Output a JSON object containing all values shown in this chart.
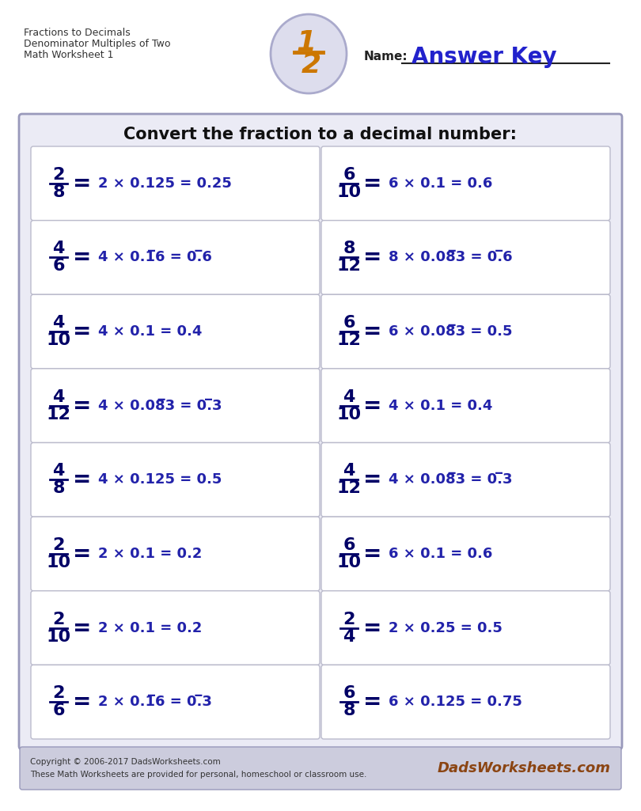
{
  "title_line1": "Fractions to Decimals",
  "title_line2": "Denominator Multiples of Two",
  "title_line3": "Math Worksheet 1",
  "answer_key_label": "Name:",
  "answer_key_text": "Answer Key",
  "main_instruction": "Convert the fraction to a decimal number:",
  "problems": [
    {
      "num": "2",
      "den": "8",
      "eq": "2 × 0.125 = 0.25"
    },
    {
      "num": "6",
      "den": "10",
      "eq": "6 × 0.1 = 0.6"
    },
    {
      "num": "4",
      "den": "6",
      "eq": "4 × 0.1̅6 = 0.̅6"
    },
    {
      "num": "8",
      "den": "12",
      "eq": "8 × 0.08̅3 = 0.̅6"
    },
    {
      "num": "4",
      "den": "10",
      "eq": "4 × 0.1 = 0.4"
    },
    {
      "num": "6",
      "den": "12",
      "eq": "6 × 0.08̅3 = 0.5"
    },
    {
      "num": "4",
      "den": "12",
      "eq": "4 × 0.08̅3 = 0.̅3"
    },
    {
      "num": "4",
      "den": "10",
      "eq": "4 × 0.1 = 0.4"
    },
    {
      "num": "4",
      "den": "8",
      "eq": "4 × 0.125 = 0.5"
    },
    {
      "num": "4",
      "den": "12",
      "eq": "4 × 0.08̅3 = 0.̅3"
    },
    {
      "num": "2",
      "den": "10",
      "eq": "2 × 0.1 = 0.2"
    },
    {
      "num": "6",
      "den": "10",
      "eq": "6 × 0.1 = 0.6"
    },
    {
      "num": "2",
      "den": "10",
      "eq": "2 × 0.1 = 0.2"
    },
    {
      "num": "2",
      "den": "4",
      "eq": "2 × 0.25 = 0.5"
    },
    {
      "num": "2",
      "den": "6",
      "eq": "2 × 0.1̅6 = 0.̅3"
    },
    {
      "num": "6",
      "den": "8",
      "eq": "6 × 0.125 = 0.75"
    }
  ],
  "page_bg": "#ffffff",
  "content_border_color": "#9999bb",
  "content_fill": "#ebebf5",
  "cell_border_color": "#bbbbcc",
  "cell_fill": "#ffffff",
  "fraction_color": "#000066",
  "equation_color": "#2222aa",
  "answer_key_color": "#2222cc",
  "footer_fill": "#ccccdd",
  "footer_text_color": "#333333",
  "header_text_color": "#333333",
  "instruction_color": "#111111",
  "name_line_color": "#222222"
}
